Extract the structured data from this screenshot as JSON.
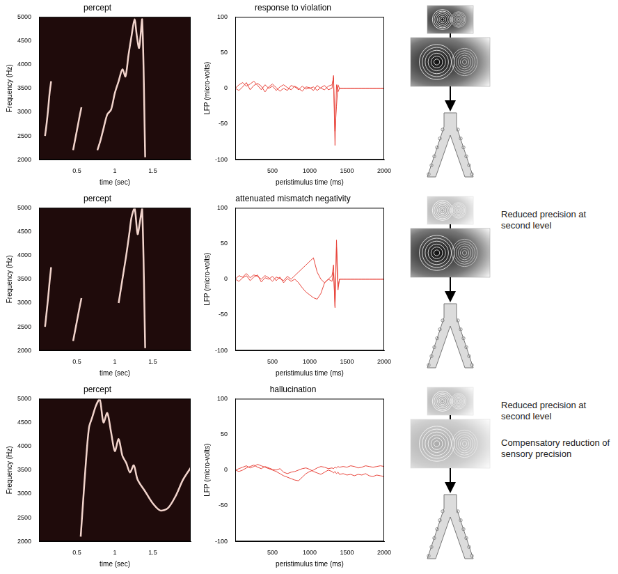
{
  "chart_data": [
    {
      "type": "spectrogram",
      "title": "percept",
      "x_label": "time (sec)",
      "y_label": "Frequency (Hz)",
      "x": [
        0.08,
        0.1,
        0.12,
        0.14,
        0.16,
        0.2,
        0.45,
        0.48,
        0.51,
        0.54,
        0.56,
        0.6,
        0.77,
        0.81,
        0.85,
        0.9,
        0.95,
        1.0,
        1.05,
        1.1,
        1.14,
        1.18,
        1.22,
        1.26,
        1.29,
        1.32,
        1.36,
        1.4
      ],
      "values": [
        2500,
        2750,
        3050,
        3400,
        3650,
        null,
        2200,
        2450,
        2700,
        2950,
        3100,
        null,
        2200,
        2400,
        2650,
        2950,
        3050,
        3400,
        3650,
        3900,
        3750,
        4200,
        4600,
        4950,
        4600,
        4350,
        4950,
        2050
      ],
      "color": "#f2d4cc",
      "xlim": [
        0,
        2
      ],
      "xticks": [
        0.5,
        1,
        1.5
      ],
      "ylim": [
        2000,
        5000
      ],
      "yticks": [
        2000,
        2500,
        3000,
        3500,
        4000,
        4500,
        5000
      ],
      "grid": false
    },
    {
      "type": "line",
      "title": "response to violation",
      "x_label": "peristimulus time (ms)",
      "y_label": "LFP (micro-volts)",
      "x": [
        0,
        50,
        100,
        150,
        200,
        250,
        300,
        350,
        400,
        450,
        500,
        550,
        600,
        650,
        700,
        750,
        800,
        850,
        900,
        950,
        1000,
        1050,
        1100,
        1150,
        1200,
        1250,
        1300,
        1320,
        1340,
        1360,
        1380,
        1400,
        1450,
        1500,
        1550,
        1600,
        1650,
        1700,
        1750,
        1800,
        1850,
        1900,
        1950,
        2000
      ],
      "series": [
        {
          "color": "#e8453c",
          "values": [
            0,
            5,
            8,
            3,
            6,
            10,
            4,
            -2,
            5,
            0,
            3,
            -3,
            2,
            5,
            1,
            -2,
            3,
            0,
            -4,
            2,
            1,
            -3,
            4,
            0,
            -2,
            3,
            5,
            15,
            -80,
            5,
            -5,
            0,
            0,
            0,
            0,
            0,
            0,
            0,
            0,
            0,
            0,
            0,
            0,
            0
          ]
        },
        {
          "color": "#e8453c",
          "values": [
            0,
            -3,
            2,
            8,
            -2,
            4,
            7,
            3,
            -5,
            2,
            6,
            1,
            -4,
            0,
            -3,
            4,
            2,
            -2,
            3,
            -1,
            0,
            2,
            -3,
            1,
            4,
            -2,
            0,
            18,
            -60,
            -25,
            5,
            0,
            0,
            0,
            0,
            0,
            0,
            0,
            0,
            0,
            0,
            0,
            0,
            0
          ]
        }
      ],
      "xlim": [
        0,
        2000
      ],
      "xticks": [
        500,
        1000,
        1500,
        2000
      ],
      "ylim": [
        -100,
        100
      ],
      "yticks": [
        -100,
        -50,
        0,
        50,
        100
      ],
      "grid": false
    },
    {
      "type": "spectrogram",
      "title": "percept",
      "x_label": "time (sec)",
      "y_label": "Frequency (Hz)",
      "x": [
        0.08,
        0.1,
        0.12,
        0.14,
        0.16,
        0.2,
        0.45,
        0.48,
        0.51,
        0.54,
        0.56,
        0.6,
        1.05,
        1.08,
        1.12,
        1.15,
        1.19,
        1.22,
        1.26,
        1.3,
        1.33,
        1.36,
        1.4
      ],
      "values": [
        2500,
        2800,
        3100,
        3450,
        3750,
        null,
        2200,
        2450,
        2700,
        2950,
        3100,
        null,
        3000,
        3300,
        3700,
        4000,
        4450,
        4800,
        5000,
        4450,
        4700,
        5000,
        2050
      ],
      "color": "#f2d4cc",
      "xlim": [
        0,
        2
      ],
      "xticks": [
        0.5,
        1,
        1.5
      ],
      "ylim": [
        2000,
        5000
      ],
      "yticks": [
        2000,
        2500,
        3000,
        3500,
        4000,
        4500,
        5000
      ],
      "grid": false
    },
    {
      "type": "line",
      "title": "attenuated mismatch negativity",
      "x_label": "peristimulus time (ms)",
      "y_label": "LFP (micro-volts)",
      "x": [
        0,
        50,
        100,
        150,
        200,
        250,
        300,
        350,
        400,
        450,
        500,
        550,
        600,
        650,
        700,
        750,
        800,
        850,
        900,
        950,
        1000,
        1050,
        1100,
        1150,
        1200,
        1250,
        1300,
        1320,
        1340,
        1360,
        1380,
        1400,
        1450,
        1500,
        1550,
        1600,
        1650,
        1700,
        1750,
        1800,
        1850,
        1900,
        1950,
        2000
      ],
      "series": [
        {
          "color": "#e8453c",
          "values": [
            0,
            5,
            3,
            8,
            2,
            6,
            4,
            0,
            5,
            2,
            -3,
            3,
            1,
            -2,
            4,
            0,
            5,
            10,
            15,
            20,
            25,
            30,
            10,
            0,
            -5,
            0,
            5,
            20,
            -40,
            55,
            -10,
            0,
            0,
            0,
            0,
            0,
            0,
            0,
            0,
            0,
            0,
            0,
            0,
            0
          ]
        },
        {
          "color": "#e8453c",
          "values": [
            0,
            -3,
            2,
            5,
            -2,
            3,
            6,
            -4,
            2,
            0,
            4,
            -2,
            3,
            -5,
            1,
            -3,
            0,
            -5,
            -12,
            -18,
            -22,
            -26,
            -28,
            -20,
            -5,
            0,
            -3,
            10,
            -38,
            45,
            -15,
            0,
            0,
            0,
            0,
            0,
            0,
            0,
            0,
            0,
            0,
            0,
            0,
            0
          ]
        }
      ],
      "xlim": [
        0,
        2000
      ],
      "xticks": [
        500,
        1000,
        1500,
        2000
      ],
      "ylim": [
        -100,
        100
      ],
      "yticks": [
        -100,
        -50,
        0,
        50,
        100
      ],
      "grid": false
    },
    {
      "type": "spectrogram",
      "title": "percept",
      "x_label": "time (sec)",
      "y_label": "Frequency (Hz)",
      "x": [
        0.55,
        0.58,
        0.62,
        0.66,
        0.7,
        0.75,
        0.8,
        0.85,
        0.9,
        0.95,
        1.0,
        1.05,
        1.1,
        1.15,
        1.2,
        1.25,
        1.3,
        1.4,
        1.5,
        1.6,
        1.7,
        1.8,
        1.9,
        2.0
      ],
      "values": [
        2100,
        2800,
        3700,
        4400,
        4600,
        4850,
        5000,
        4500,
        4700,
        4300,
        3900,
        4150,
        3800,
        3650,
        3450,
        3600,
        3300,
        3050,
        2800,
        2650,
        2700,
        2950,
        3300,
        3550
      ],
      "color": "#f2d4cc",
      "xlim": [
        0,
        2
      ],
      "xticks": [
        0.5,
        1,
        1.5
      ],
      "ylim": [
        2000,
        5000
      ],
      "yticks": [
        2000,
        2500,
        3000,
        3500,
        4000,
        4500,
        5000
      ],
      "grid": false
    },
    {
      "type": "line",
      "title": "hallucination",
      "x_label": "peristimulus time (ms)",
      "y_label": "LFP (micro-volts)",
      "x": [
        0,
        50,
        100,
        150,
        200,
        250,
        300,
        350,
        400,
        450,
        500,
        550,
        600,
        650,
        700,
        750,
        800,
        850,
        900,
        950,
        1000,
        1050,
        1100,
        1150,
        1200,
        1250,
        1300,
        1320,
        1340,
        1360,
        1380,
        1400,
        1450,
        1500,
        1550,
        1600,
        1650,
        1700,
        1750,
        1800,
        1850,
        1900,
        1950,
        2000
      ],
      "series": [
        {
          "color": "#e8453c",
          "values": [
            0,
            2,
            4,
            6,
            3,
            5,
            8,
            6,
            4,
            2,
            0,
            -2,
            -5,
            -8,
            -10,
            -12,
            -14,
            -15,
            -10,
            -5,
            -2,
            0,
            3,
            5,
            4,
            2,
            3,
            2,
            4,
            3,
            5,
            4,
            5,
            4,
            6,
            5,
            3,
            4,
            6,
            5,
            4,
            5,
            6,
            5
          ]
        },
        {
          "color": "#e8453c",
          "values": [
            0,
            -2,
            0,
            3,
            5,
            7,
            4,
            2,
            5,
            3,
            1,
            0,
            2,
            -3,
            -5,
            -3,
            -2,
            0,
            2,
            3,
            1,
            -2,
            -4,
            -6,
            -3,
            0,
            -2,
            -4,
            -2,
            -5,
            -3,
            -6,
            -5,
            -7,
            -6,
            -8,
            -6,
            -7,
            -5,
            -8,
            -9,
            -7,
            -8,
            -9
          ]
        }
      ],
      "xlim": [
        0,
        2000
      ],
      "xticks": [
        500,
        1000,
        1500,
        2000
      ],
      "ylim": [
        -100,
        100
      ],
      "yticks": [
        -100,
        -50,
        0,
        50,
        100
      ],
      "grid": false
    }
  ],
  "diagram": {
    "rows": [
      {
        "labels": []
      },
      {
        "labels": [
          "Reduced precision at second level"
        ]
      },
      {
        "labels": [
          "Reduced precision at second level",
          "Compensatory reduction of sensory precision"
        ]
      }
    ]
  }
}
